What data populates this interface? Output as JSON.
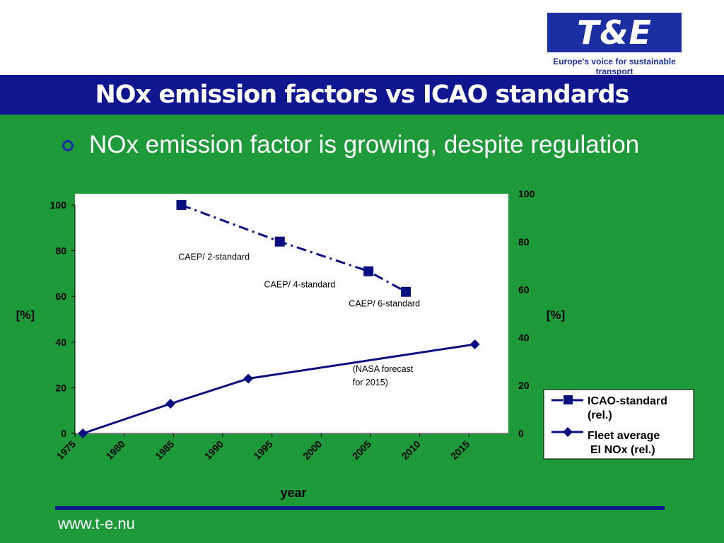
{
  "logo": {
    "text": "T&E",
    "tagline": "Europe's voice for sustainable transport"
  },
  "slide": {
    "title": "NOx emission factors vs ICAO standards",
    "bullet": "NOx emission factor is growing, despite regulation",
    "footer": "www.t-e.nu"
  },
  "colors": {
    "background": "#1f9a3a",
    "title_bar": "#10168f",
    "series": "#0a0f80"
  },
  "chart_data": {
    "type": "line",
    "xlabel": "year",
    "ylabel_left": "[%]",
    "ylabel_right": "[%]",
    "xlim": [
      1975,
      2019
    ],
    "ylim": [
      0,
      100
    ],
    "x_ticks": [
      1975,
      1980,
      1985,
      1990,
      1995,
      2000,
      2005,
      2010,
      2015
    ],
    "y_ticks_left": [
      0,
      20,
      40,
      60,
      80,
      100
    ],
    "y_ticks_right": [
      0,
      20,
      40,
      60,
      80,
      100
    ],
    "grid": false,
    "legend_position": "bottom-right",
    "series": [
      {
        "name": "ICAO-standard (rel.)",
        "style": "dash-dot",
        "marker": "square",
        "x": [
          1985.8,
          1995.8,
          2004.8,
          2008.6
        ],
        "y": [
          100,
          84,
          71,
          62
        ]
      },
      {
        "name": "Fleet average EI NOx (rel.)",
        "style": "solid",
        "marker": "diamond",
        "x": [
          1975.8,
          1984.7,
          1992.6,
          2015.6
        ],
        "y": [
          0,
          13,
          24,
          39
        ]
      }
    ],
    "annotations": [
      {
        "text": "CAEP/ 2-standard",
        "x": 1985.5,
        "y": 76
      },
      {
        "text": "CAEP/ 4-standard",
        "x": 1994.2,
        "y": 64
      },
      {
        "text": "CAEP/ 6-standard",
        "x": 2002.8,
        "y": 55.5
      },
      {
        "text": "(NASA forecast",
        "x": 2003.2,
        "y": 27
      },
      {
        "text": "for 2015)",
        "x": 2003.2,
        "y": 21
      }
    ],
    "legend": [
      {
        "line1": "ICAO-standard",
        "line2": "(rel.)"
      },
      {
        "line1": "Fleet average",
        "line2": "EI NOx (rel.)"
      }
    ]
  }
}
